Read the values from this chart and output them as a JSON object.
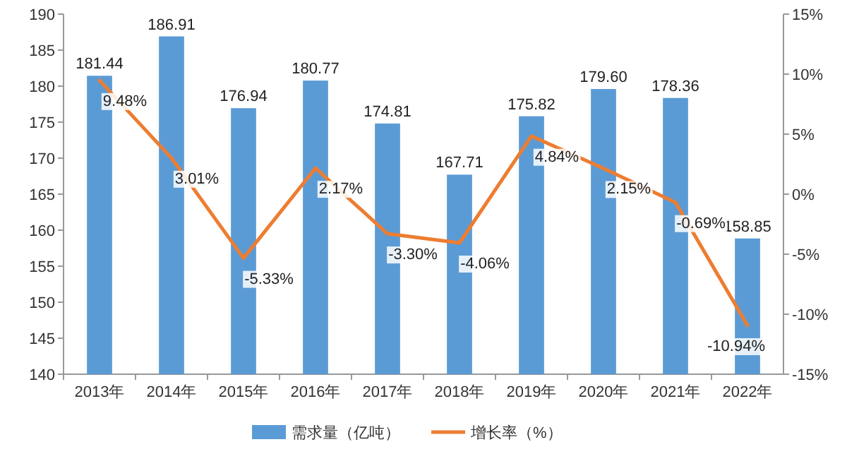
{
  "chart_data": {
    "type": "bar",
    "categories": [
      "2013年",
      "2014年",
      "2015年",
      "2016年",
      "2017年",
      "2018年",
      "2019年",
      "2020年",
      "2021年",
      "2022年"
    ],
    "series": [
      {
        "name": "需求量（亿吨）",
        "color": "#5b9bd5",
        "values": [
          181.44,
          186.91,
          176.94,
          180.77,
          174.81,
          167.71,
          175.82,
          179.6,
          178.36,
          158.85
        ],
        "value_labels": [
          "181.44",
          "186.91",
          "176.94",
          "180.77",
          "174.81",
          "167.71",
          "175.82",
          "179.60",
          "178.36",
          "158.85"
        ]
      },
      {
        "name": "增长率（%）",
        "type": "line",
        "axis": "y2",
        "color": "#ed7d31",
        "values": [
          9.48,
          3.01,
          -5.33,
          2.17,
          -3.3,
          -4.06,
          4.84,
          2.15,
          -0.69,
          -10.94
        ],
        "value_labels": [
          "9.48%",
          "3.01%",
          "-5.33%",
          "2.17%",
          "-3.30%",
          "-4.06%",
          "4.84%",
          "2.15%",
          "-0.69%",
          "-10.94%"
        ]
      }
    ],
    "ylim": [
      140,
      190
    ],
    "yticks": [
      140,
      145,
      150,
      155,
      160,
      165,
      170,
      175,
      180,
      185,
      190
    ],
    "y2lim": [
      -15,
      15
    ],
    "y2ticks": [
      {
        "value": -15,
        "label": "-15%"
      },
      {
        "value": -10,
        "label": "-10%"
      },
      {
        "value": -5,
        "label": "-5%"
      },
      {
        "value": 0,
        "label": "0%"
      },
      {
        "value": 5,
        "label": "5%"
      },
      {
        "value": 10,
        "label": "10%"
      },
      {
        "value": 15,
        "label": "15%"
      }
    ],
    "legend": "bottom"
  }
}
